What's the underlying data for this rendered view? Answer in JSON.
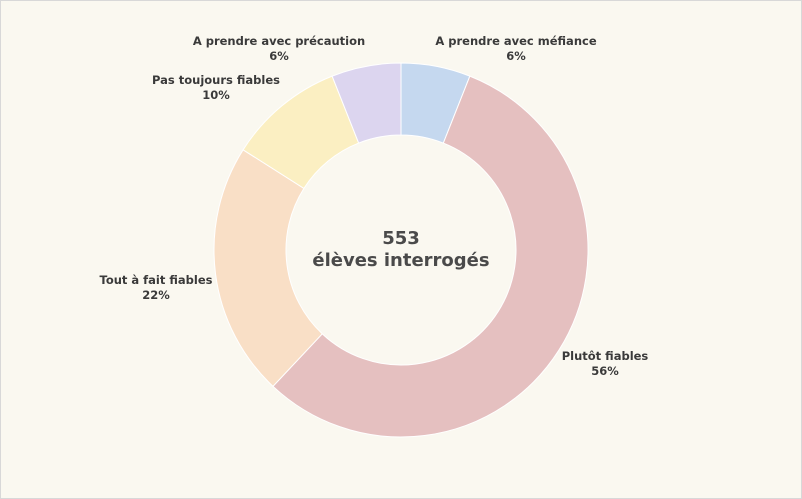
{
  "chart_data": {
    "type": "pie",
    "donut": true,
    "center_text": [
      "553",
      "élèves interrogés"
    ],
    "slices": [
      {
        "label": "A prendre avec méfiance",
        "pct_label": "6%",
        "value": 6,
        "color": "#c5d8ef"
      },
      {
        "label": "Plutôt fiables",
        "pct_label": "56%",
        "value": 56,
        "color": "#e5c0c0"
      },
      {
        "label": "Tout à fait fiables",
        "pct_label": "22%",
        "value": 22,
        "color": "#f9dfc6"
      },
      {
        "label": "Pas toujours fiables",
        "pct_label": "10%",
        "value": 10,
        "color": "#fbefc2"
      },
      {
        "label": "A prendre avec précaution",
        "pct_label": "6%",
        "value": 6,
        "color": "#dcd5ef"
      }
    ]
  }
}
